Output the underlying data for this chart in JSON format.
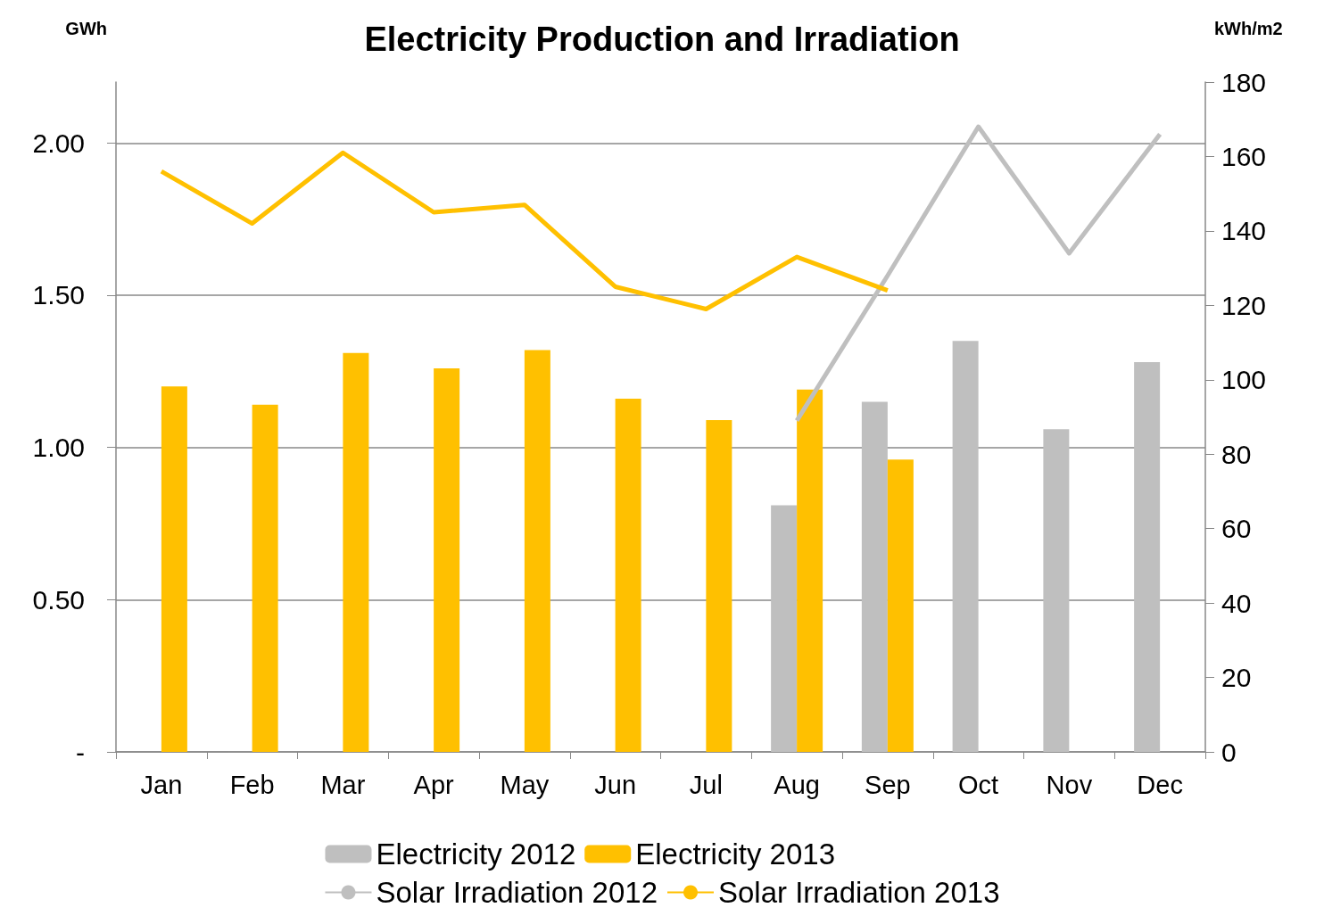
{
  "chart_data": {
    "type": "bar",
    "title": "Electricity Production and Irradiation",
    "ylabel": "GWh",
    "y2label": "kWh/m2",
    "categories": [
      "Jan",
      "Feb",
      "Mar",
      "Apr",
      "May",
      "Jun",
      "Jul",
      "Aug",
      "Sep",
      "Oct",
      "Nov",
      "Dec"
    ],
    "series": [
      {
        "name": "Electricity 2012",
        "color": "#bfbfbf",
        "values": [
          null,
          null,
          null,
          null,
          null,
          null,
          null,
          0.81,
          1.15,
          1.35,
          1.06,
          1.28
        ]
      },
      {
        "name": "Electricity 2013",
        "color": "#ffc000",
        "values": [
          1.2,
          1.14,
          1.31,
          1.26,
          1.32,
          1.16,
          1.09,
          1.19,
          0.96,
          null,
          null,
          null
        ]
      },
      {
        "name": "Solar Irradiation 2012",
        "type": "line",
        "axis": "y2",
        "color": "#bfbfbf",
        "values": [
          null,
          null,
          null,
          null,
          null,
          null,
          null,
          89,
          128,
          168,
          134,
          166
        ]
      },
      {
        "name": "Solar Irradiation 2013",
        "type": "line",
        "axis": "y2",
        "color": "#ffc000",
        "values": [
          156,
          142,
          161,
          145,
          147,
          125,
          119,
          133,
          124,
          null,
          null,
          null
        ]
      }
    ],
    "ylim": [
      0,
      2.2
    ],
    "yticks": [
      {
        "value": 0,
        "label": "-"
      },
      {
        "value": 0.5,
        "label": "0.50"
      },
      {
        "value": 1,
        "label": "1.00"
      },
      {
        "value": 1.5,
        "label": "1.50"
      },
      {
        "value": 2,
        "label": "2.00"
      }
    ],
    "y2lim": [
      0,
      180
    ],
    "y2ticks": [
      0,
      20,
      40,
      60,
      80,
      100,
      120,
      140,
      160,
      180
    ],
    "grid": "y",
    "legend": "bottom",
    "marker": "none",
    "line_style": "solid"
  }
}
